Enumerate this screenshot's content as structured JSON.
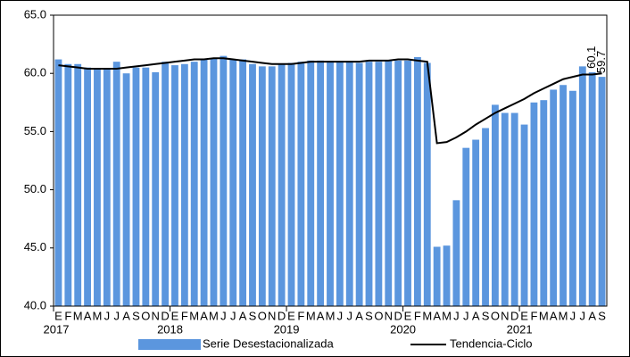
{
  "chart_data": {
    "type": "bar_line",
    "categories": [
      "E",
      "F",
      "M",
      "A",
      "M",
      "J",
      "J",
      "A",
      "S",
      "O",
      "N",
      "D",
      "E",
      "F",
      "M",
      "A",
      "M",
      "J",
      "J",
      "A",
      "S",
      "O",
      "N",
      "D",
      "E",
      "F",
      "M",
      "A",
      "M",
      "J",
      "J",
      "A",
      "S",
      "O",
      "N",
      "D",
      "E",
      "F",
      "M",
      "A",
      "M",
      "J",
      "J",
      "A",
      "S",
      "O",
      "N",
      "D",
      "E",
      "F",
      "M",
      "A",
      "M",
      "J",
      "J",
      "A",
      "S"
    ],
    "years": [
      "2017",
      "2018",
      "2019",
      "2020",
      "2021"
    ],
    "series": [
      {
        "name": "Serie Desestacionalizada",
        "type": "bar",
        "color": "#5b96de",
        "values": [
          61.2,
          60.8,
          60.8,
          60.5,
          60.4,
          60.4,
          61.0,
          60.0,
          60.5,
          60.5,
          60.1,
          61.0,
          60.7,
          60.8,
          61.0,
          61.2,
          61.3,
          61.5,
          61.2,
          61.2,
          60.8,
          60.6,
          60.6,
          60.8,
          60.9,
          61.0,
          61.1,
          61.1,
          61.0,
          61.0,
          61.0,
          60.9,
          61.0,
          61.0,
          61.1,
          61.1,
          61.1,
          61.4,
          60.9,
          45.1,
          45.2,
          49.1,
          53.6,
          54.3,
          55.3,
          57.3,
          56.6,
          56.6,
          55.6,
          57.5,
          57.7,
          58.6,
          59.0,
          58.5,
          60.6,
          60.1,
          59.7
        ],
        "value_labels": [
          null,
          null,
          null,
          null,
          null,
          null,
          null,
          null,
          null,
          null,
          null,
          null,
          null,
          null,
          null,
          null,
          null,
          null,
          null,
          null,
          null,
          null,
          null,
          null,
          null,
          null,
          null,
          null,
          null,
          null,
          null,
          null,
          null,
          null,
          null,
          null,
          null,
          null,
          null,
          null,
          null,
          null,
          null,
          null,
          null,
          null,
          null,
          null,
          null,
          null,
          null,
          null,
          null,
          null,
          null,
          "60.1",
          "59.7"
        ]
      },
      {
        "name": "Tendencia-Ciclo",
        "type": "line",
        "color": "#000000",
        "values": [
          60.7,
          60.6,
          60.5,
          60.4,
          60.4,
          60.4,
          60.4,
          60.5,
          60.6,
          60.7,
          60.8,
          60.9,
          61.0,
          61.1,
          61.2,
          61.2,
          61.3,
          61.3,
          61.2,
          61.1,
          61.0,
          60.9,
          60.8,
          60.8,
          60.8,
          60.9,
          61.0,
          61.0,
          61.0,
          61.0,
          61.0,
          61.0,
          61.1,
          61.1,
          61.1,
          61.2,
          61.2,
          61.1,
          61.0,
          54.0,
          54.1,
          54.5,
          55.0,
          55.6,
          56.1,
          56.6,
          57.0,
          57.4,
          57.8,
          58.3,
          58.7,
          59.1,
          59.5,
          59.7,
          59.9,
          59.9,
          60.0
        ]
      }
    ],
    "ylim": [
      40,
      65
    ],
    "yticks": [
      {
        "value": 40,
        "label": "40.0"
      },
      {
        "value": 45,
        "label": "45.0"
      },
      {
        "value": 50,
        "label": "50.0"
      },
      {
        "value": 55,
        "label": "55.0"
      },
      {
        "value": 60,
        "label": "60.0"
      },
      {
        "value": 65,
        "label": "65.0"
      }
    ],
    "grid": false,
    "legend": "bottom"
  }
}
